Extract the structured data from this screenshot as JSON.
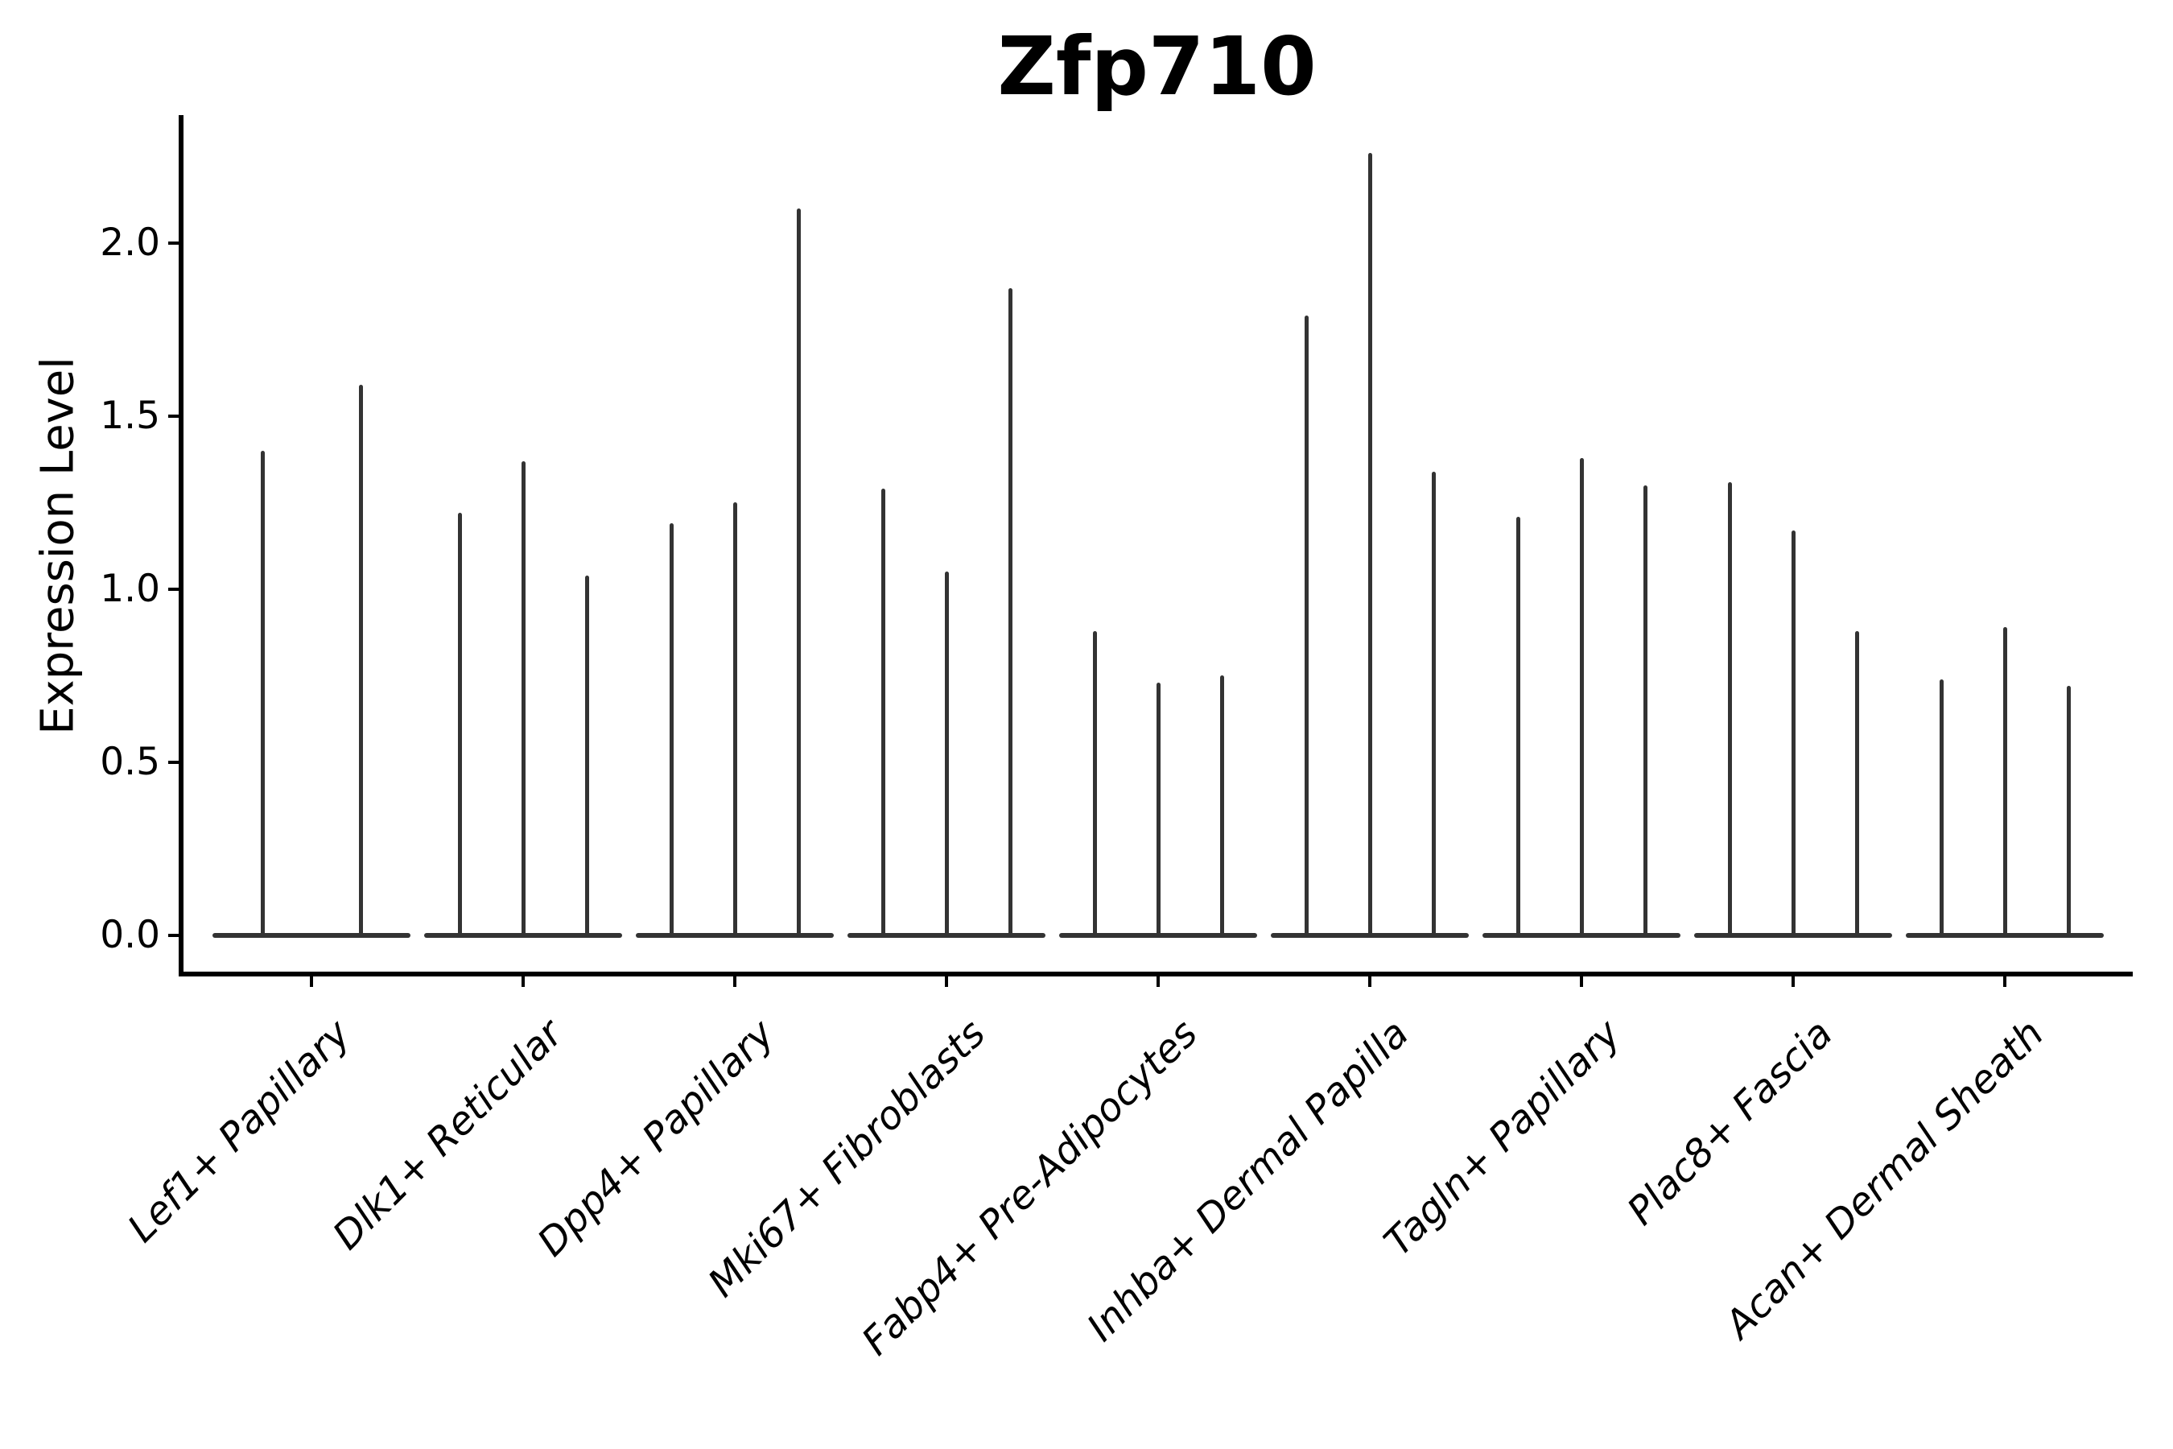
{
  "figure": {
    "title": "Zfp710",
    "ylabel": "Expression Level"
  },
  "chart_data": {
    "type": "violin",
    "title": "Zfp710",
    "xlabel": "",
    "ylabel": "Expression Level",
    "yticks": [
      0.0,
      0.5,
      1.0,
      1.5,
      2.0
    ],
    "ylim": [
      -0.11,
      2.37
    ],
    "grid": false,
    "legend": "none",
    "violin_color": "#333333",
    "axis_color": "#000000",
    "groups": [
      {
        "category": "Lef1+ Papillary",
        "violin_maxima": [
          1.4,
          1.59
        ]
      },
      {
        "category": "Dlk1+ Reticular",
        "violin_maxima": [
          1.22,
          1.37,
          1.04
        ]
      },
      {
        "category": "Dpp4+ Papillary",
        "violin_maxima": [
          1.19,
          1.25,
          2.1
        ]
      },
      {
        "category": "Mki67+ Fibroblasts",
        "violin_maxima": [
          1.29,
          1.05,
          1.87
        ]
      },
      {
        "category": "Fabp4+ Pre-Adipocytes",
        "violin_maxima": [
          0.88,
          0.73,
          0.75
        ]
      },
      {
        "category": "Inhba+ Dermal Papilla",
        "violin_maxima": [
          1.79,
          2.26,
          1.34
        ]
      },
      {
        "category": "Tagln+ Papillary",
        "violin_maxima": [
          1.21,
          1.38,
          1.3
        ]
      },
      {
        "category": "Plac8+ Fascia",
        "violin_maxima": [
          1.31,
          1.17,
          0.88
        ]
      },
      {
        "category": "Acan+ Dermal Sheath",
        "violin_maxima": [
          0.74,
          0.89,
          0.72
        ]
      }
    ]
  }
}
